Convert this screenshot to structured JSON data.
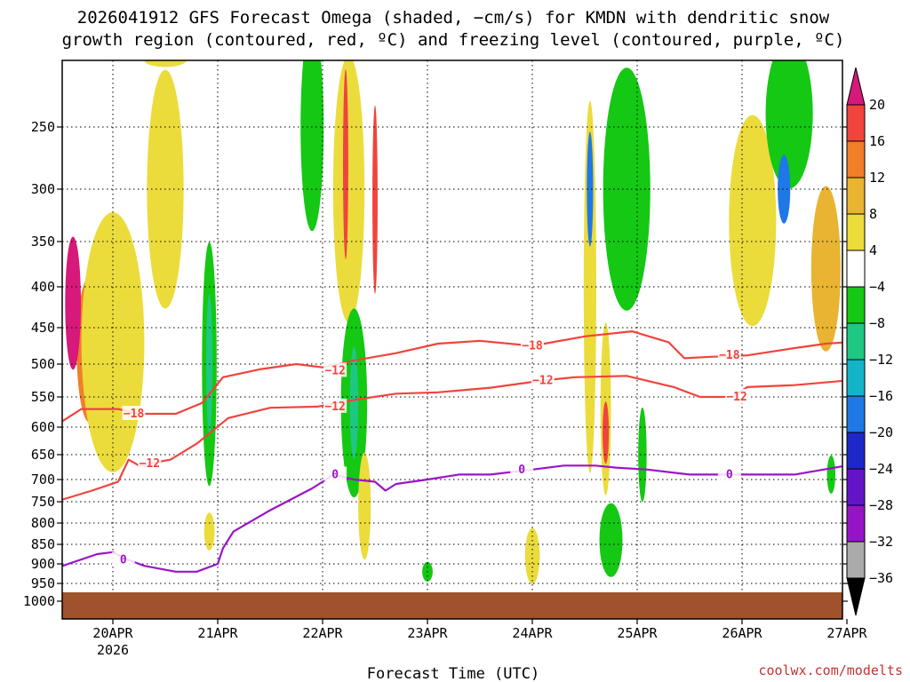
{
  "chart_data": {
    "type": "heatmap",
    "title_line1": "2026041912 GFS Forecast Omega (shaded, −cm/s) for KMDN with dendritic snow",
    "title_line2": "growth region (contoured, red, ºC) and freezing level (contoured, purple, ºC)",
    "xlabel": "Forecast Time (UTC)",
    "x_ticks": [
      "20APR",
      "21APR",
      "22APR",
      "23APR",
      "24APR",
      "25APR",
      "26APR",
      "27APR"
    ],
    "x_tick_year": "2026",
    "y_ticks": [
      250,
      300,
      350,
      400,
      450,
      500,
      550,
      600,
      650,
      700,
      750,
      800,
      850,
      900,
      950,
      1000
    ],
    "y_range_hPa": [
      200,
      1030
    ],
    "x_range_days": [
      -0.48,
      7.0
    ],
    "colorbar": {
      "labels": [
        "20",
        "16",
        "12",
        "8",
        "4",
        "−4",
        "−8",
        "−12",
        "−16",
        "−20",
        "−24",
        "−28",
        "−32",
        "−36"
      ],
      "colors": [
        "#d6197a",
        "#f0443c",
        "#f07f28",
        "#e8b432",
        "#ebdc3c",
        "#ffffff",
        "#14c814",
        "#1ec882",
        "#14b4c8",
        "#1e78e6",
        "#1e28c8",
        "#6414c8",
        "#9614c8",
        "#aaaaaa",
        "#000000"
      ]
    },
    "omega_blobs": [
      {
        "d": -0.22,
        "p": 480,
        "w": 0.25,
        "h": 200,
        "color": "#f07f28"
      },
      {
        "d": -0.38,
        "p": 420,
        "w": 0.15,
        "h": 160,
        "color": "#d6197a"
      },
      {
        "d": 0.05,
        "p": 440,
        "w": 0.15,
        "h": 160,
        "color": "#f07f28"
      },
      {
        "d": 0.0,
        "p": 470,
        "w": 0.6,
        "h": 340,
        "color": "#ebdc3c"
      },
      {
        "d": 0.5,
        "p": 300,
        "w": 0.35,
        "h": 230,
        "color": "#ebdc3c"
      },
      {
        "d": 0.5,
        "p": 180,
        "w": 0.4,
        "h": 60,
        "color": "#ebdc3c"
      },
      {
        "d": 0.92,
        "p": 500,
        "w": 0.14,
        "h": 340,
        "color": "#14c814"
      },
      {
        "d": 0.92,
        "p": 500,
        "w": 0.06,
        "h": 200,
        "color": "#1ec882"
      },
      {
        "d": 0.92,
        "p": 820,
        "w": 0.1,
        "h": 90,
        "color": "#ebdc3c"
      },
      {
        "d": 1.9,
        "p": 250,
        "w": 0.22,
        "h": 260,
        "color": "#14c814"
      },
      {
        "d": 2.25,
        "p": 300,
        "w": 0.3,
        "h": 300,
        "color": "#ebdc3c"
      },
      {
        "d": 2.22,
        "p": 280,
        "w": 0.05,
        "h": 160,
        "color": "#f0443c"
      },
      {
        "d": 2.5,
        "p": 310,
        "w": 0.05,
        "h": 170,
        "color": "#f0443c"
      },
      {
        "d": 2.3,
        "p": 560,
        "w": 0.25,
        "h": 300,
        "color": "#14c814"
      },
      {
        "d": 2.3,
        "p": 560,
        "w": 0.08,
        "h": 180,
        "color": "#1ec882"
      },
      {
        "d": 2.4,
        "p": 760,
        "w": 0.12,
        "h": 240,
        "color": "#ebdc3c"
      },
      {
        "d": 4.02,
        "p": 880,
        "w": 0.1,
        "h": 100,
        "color": "#f07f28"
      },
      {
        "d": 4.0,
        "p": 880,
        "w": 0.14,
        "h": 140,
        "color": "#ebdc3c"
      },
      {
        "d": 3.0,
        "p": 920,
        "w": 0.1,
        "h": 50,
        "color": "#14c814"
      },
      {
        "d": 4.55,
        "p": 400,
        "w": 0.12,
        "h": 420,
        "color": "#ebdc3c"
      },
      {
        "d": 4.55,
        "p": 300,
        "w": 0.06,
        "h": 100,
        "color": "#1e78e6"
      },
      {
        "d": 4.7,
        "p": 570,
        "w": 0.1,
        "h": 280,
        "color": "#ebdc3c"
      },
      {
        "d": 4.7,
        "p": 610,
        "w": 0.06,
        "h": 110,
        "color": "#f0443c"
      },
      {
        "d": 4.75,
        "p": 840,
        "w": 0.22,
        "h": 180,
        "color": "#14c814"
      },
      {
        "d": 4.9,
        "p": 300,
        "w": 0.45,
        "h": 240,
        "color": "#14c814"
      },
      {
        "d": 5.05,
        "p": 650,
        "w": 0.08,
        "h": 180,
        "color": "#14c814"
      },
      {
        "d": 6.1,
        "p": 330,
        "w": 0.45,
        "h": 200,
        "color": "#ebdc3c"
      },
      {
        "d": 6.45,
        "p": 240,
        "w": 0.45,
        "h": 160,
        "color": "#14c814"
      },
      {
        "d": 6.4,
        "p": 300,
        "w": 0.12,
        "h": 60,
        "color": "#1e78e6"
      },
      {
        "d": 6.8,
        "p": 380,
        "w": 0.28,
        "h": 180,
        "color": "#e8b432"
      },
      {
        "d": 6.85,
        "p": 690,
        "w": 0.08,
        "h": 80,
        "color": "#14c814"
      }
    ],
    "dgz_minus18": {
      "label": "−18",
      "points": [
        [
          -0.48,
          590
        ],
        [
          -0.3,
          570
        ],
        [
          0.05,
          570
        ],
        [
          0.25,
          578
        ],
        [
          0.6,
          578
        ],
        [
          0.85,
          560
        ],
        [
          1.05,
          520
        ],
        [
          1.4,
          508
        ],
        [
          1.75,
          500
        ],
        [
          2.0,
          505
        ],
        [
          2.3,
          495
        ],
        [
          2.7,
          485
        ],
        [
          3.1,
          472
        ],
        [
          3.5,
          468
        ],
        [
          4.0,
          475
        ],
        [
          4.5,
          462
        ],
        [
          4.95,
          455
        ],
        [
          5.3,
          470
        ],
        [
          5.45,
          492
        ],
        [
          5.7,
          490
        ],
        [
          6.05,
          488
        ],
        [
          6.5,
          478
        ],
        [
          6.8,
          472
        ],
        [
          7.0,
          470
        ]
      ],
      "label_pos": [
        [
          0.2,
          578
        ],
        [
          4.0,
          475
        ],
        [
          5.88,
          488
        ]
      ]
    },
    "dgz_minus12": {
      "label": "−12",
      "points": [
        [
          -0.48,
          745
        ],
        [
          -0.2,
          725
        ],
        [
          0.05,
          705
        ],
        [
          0.15,
          660
        ],
        [
          0.25,
          672
        ],
        [
          0.55,
          660
        ],
        [
          0.8,
          630
        ],
        [
          1.1,
          585
        ],
        [
          1.5,
          568
        ],
        [
          1.95,
          566
        ],
        [
          2.3,
          555
        ],
        [
          2.7,
          545
        ],
        [
          3.1,
          543
        ],
        [
          3.6,
          536
        ],
        [
          4.1,
          525
        ],
        [
          4.4,
          520
        ],
        [
          4.9,
          518
        ],
        [
          5.35,
          535
        ],
        [
          5.6,
          550
        ],
        [
          5.9,
          550
        ],
        [
          6.05,
          535
        ],
        [
          6.5,
          532
        ],
        [
          7.0,
          525
        ]
      ],
      "label_pos": [
        [
          0.35,
          668
        ],
        [
          2.12,
          510
        ],
        [
          2.12,
          566
        ],
        [
          4.1,
          525
        ],
        [
          5.95,
          550
        ]
      ]
    },
    "freezing_0": {
      "label": "0",
      "points": [
        [
          -0.48,
          905
        ],
        [
          -0.15,
          875
        ],
        [
          0.0,
          870
        ],
        [
          0.15,
          890
        ],
        [
          0.3,
          905
        ],
        [
          0.6,
          920
        ],
        [
          0.8,
          920
        ],
        [
          1.0,
          900
        ],
        [
          1.05,
          860
        ],
        [
          1.15,
          820
        ],
        [
          1.5,
          770
        ],
        [
          1.9,
          720
        ],
        [
          2.0,
          705
        ],
        [
          2.1,
          690
        ],
        [
          2.3,
          700
        ],
        [
          2.5,
          705
        ],
        [
          2.6,
          725
        ],
        [
          2.7,
          710
        ],
        [
          3.0,
          700
        ],
        [
          3.3,
          690
        ],
        [
          3.6,
          690
        ],
        [
          4.0,
          680
        ],
        [
          4.3,
          672
        ],
        [
          4.6,
          672
        ],
        [
          4.8,
          676
        ],
        [
          5.1,
          680
        ],
        [
          5.5,
          690
        ],
        [
          6.0,
          690
        ],
        [
          6.5,
          690
        ],
        [
          7.0,
          672
        ]
      ],
      "label_pos": [
        [
          0.1,
          890
        ],
        [
          2.12,
          690
        ],
        [
          3.9,
          680
        ],
        [
          5.88,
          690
        ]
      ]
    },
    "ground_level_hPa": 975,
    "credit": "coolwx.com/modelts"
  }
}
